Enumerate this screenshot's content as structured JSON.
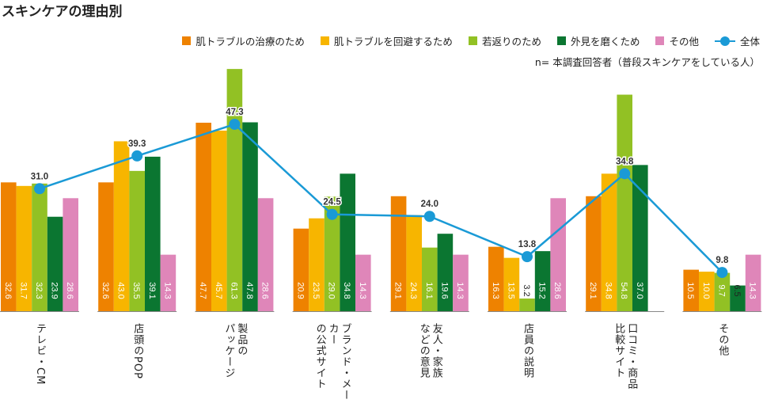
{
  "title": "スキンケアの理由別",
  "note": "n= 本調査回答者（普段スキンケアをしている人）",
  "chart_data": {
    "type": "bar",
    "title": "スキンケアの理由別",
    "categories": [
      [
        "テレビ・CM"
      ],
      [
        "店頭のPOP"
      ],
      [
        "製品の",
        "パッケージ"
      ],
      [
        "ブランド・メーカー",
        "の公式サイト"
      ],
      [
        "友人・家族",
        "などの意見"
      ],
      [
        "店員の説明"
      ],
      [
        "口コミ・商品",
        "比較サイト"
      ],
      [
        "その他"
      ]
    ],
    "series": [
      {
        "name": "肌トラブルの治療のため",
        "color": "#ee8200",
        "values": [
          32.6,
          32.6,
          47.7,
          20.9,
          29.1,
          16.3,
          29.1,
          10.5
        ]
      },
      {
        "name": "肌トラブルを回避するため",
        "color": "#f7b500",
        "values": [
          31.7,
          43.0,
          45.7,
          23.5,
          24.3,
          13.5,
          34.8,
          10.0
        ]
      },
      {
        "name": "若返りのため",
        "color": "#92c124",
        "values": [
          32.3,
          35.5,
          61.3,
          29.0,
          16.1,
          3.2,
          54.8,
          9.7
        ]
      },
      {
        "name": "外見を磨くため",
        "color": "#0b7631",
        "values": [
          23.9,
          39.1,
          47.8,
          34.8,
          19.6,
          15.2,
          37.0,
          6.5
        ]
      },
      {
        "name": "その他",
        "color": "#df86b9",
        "values": [
          28.6,
          14.3,
          28.6,
          14.3,
          14.3,
          28.6,
          0,
          14.3
        ]
      }
    ],
    "line": {
      "name": "全体",
      "color": "#1a9ad6",
      "values": [
        31.0,
        39.3,
        47.3,
        24.5,
        24.0,
        13.8,
        34.8,
        9.8
      ]
    },
    "ylim": [
      0,
      62
    ],
    "grid": false,
    "legend": "top-right"
  }
}
